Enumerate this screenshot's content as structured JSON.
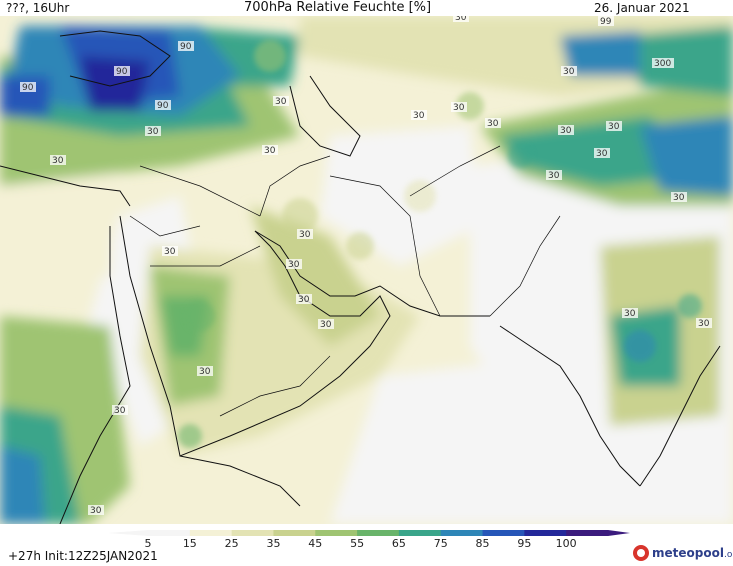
{
  "header": {
    "left": "???, 16Uhr",
    "title": "700hPa Relative Feuchte [%]",
    "date": "26. Januar 2021"
  },
  "footer": {
    "run_info": "+27h  Init:12Z25JAN2021",
    "brand": "meteopool",
    "brand_tld": ".org"
  },
  "legend": {
    "ticks": [
      "5",
      "15",
      "25",
      "35",
      "45",
      "55",
      "65",
      "75",
      "85",
      "95",
      "100"
    ],
    "colors": [
      "#f5f5f5",
      "#f4f1d6",
      "#e3e3b4",
      "#c9d28f",
      "#9fc472",
      "#69b46a",
      "#3aa58a",
      "#2e86b7",
      "#2656b8",
      "#23289a",
      "#3b1b7d"
    ]
  },
  "contour_labels": [
    {
      "text": "90"
    },
    {
      "text": "90"
    },
    {
      "text": "90"
    },
    {
      "text": "90"
    },
    {
      "text": "99"
    },
    {
      "text": "30"
    },
    {
      "text": "30"
    },
    {
      "text": "300"
    },
    {
      "text": "30"
    },
    {
      "text": "30"
    },
    {
      "text": "30"
    },
    {
      "text": "30"
    },
    {
      "text": "30"
    },
    {
      "text": "30"
    },
    {
      "text": "30"
    },
    {
      "text": "30"
    },
    {
      "text": "30"
    },
    {
      "text": "30"
    },
    {
      "text": "30"
    },
    {
      "text": "30"
    },
    {
      "text": "30"
    },
    {
      "text": "30"
    },
    {
      "text": "30"
    },
    {
      "text": "30"
    },
    {
      "text": "30"
    },
    {
      "text": "30"
    },
    {
      "text": "30"
    },
    {
      "text": "30"
    },
    {
      "text": "30"
    },
    {
      "text": "30"
    }
  ]
}
